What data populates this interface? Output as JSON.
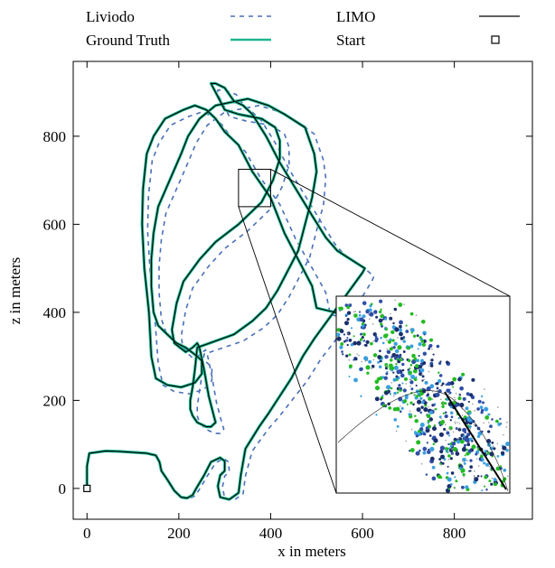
{
  "chart_data": {
    "type": "line",
    "title": "",
    "xlabel": "x in meters",
    "ylabel": "z in meters",
    "xlim": [
      -30,
      970
    ],
    "ylim": [
      -70,
      970
    ],
    "xticks": [
      0,
      200,
      400,
      600,
      800
    ],
    "yticks": [
      0,
      200,
      400,
      600,
      800
    ],
    "grid": false,
    "legend_position": "top, outside plot (two columns)",
    "colors": {
      "liviodo": "#4a6fb8",
      "limo": "#000000",
      "ground_truth": "#1fb58f",
      "start": "#000000"
    },
    "series": [
      {
        "name": "Ground Truth",
        "style": "solid",
        "x": [
          0,
          0,
          5,
          40,
          70,
          100,
          130,
          150,
          158,
          162,
          175,
          190,
          205,
          218,
          230,
          238,
          255,
          270,
          290,
          300,
          300,
          290,
          285,
          290,
          310,
          330,
          335,
          345,
          375,
          395,
          420,
          445,
          470,
          495,
          600,
          605,
          590,
          560,
          545,
          520,
          490,
          455,
          420,
          390,
          360,
          340,
          320,
          300,
          280,
          270,
          275,
          280,
          290,
          300,
          330,
          380,
          410,
          420,
          420,
          405,
          380,
          330,
          280,
          245,
          210,
          195,
          185,
          190,
          215,
          230,
          240,
          245,
          255,
          265,
          275,
          280,
          270,
          260,
          240,
          230,
          225,
          225,
          230,
          235,
          240,
          320,
          360,
          390,
          415,
          440,
          460,
          475,
          490,
          500,
          495,
          485,
          475,
          430,
          395,
          350,
          280,
          245,
          220,
          205,
          180,
          155,
          145,
          140,
          140,
          145,
          155,
          175,
          195,
          215,
          240,
          250,
          250,
          235,
          205,
          175,
          150,
          140,
          135,
          125,
          120,
          122,
          130,
          145,
          170,
          210,
          235,
          260,
          280,
          300,
          330,
          360,
          400,
          430,
          460,
          490,
          500,
          540,
          560,
          580
        ],
        "y": [
          0,
          50,
          80,
          85,
          84,
          82,
          80,
          75,
          60,
          40,
          20,
          -5,
          -20,
          -22,
          -15,
          0,
          30,
          60,
          70,
          62,
          40,
          30,
          5,
          -20,
          -25,
          -10,
          30,
          90,
          140,
          170,
          210,
          250,
          300,
          340,
          490,
          500,
          510,
          530,
          540,
          570,
          620,
          680,
          740,
          800,
          850,
          870,
          880,
          910,
          920,
          920,
          910,
          900,
          880,
          860,
          850,
          840,
          820,
          790,
          750,
          700,
          650,
          600,
          560,
          520,
          470,
          420,
          360,
          330,
          310,
          320,
          330,
          320,
          270,
          210,
          170,
          150,
          140,
          140,
          150,
          165,
          180,
          200,
          230,
          270,
          320,
          350,
          380,
          410,
          450,
          500,
          540,
          600,
          660,
          720,
          760,
          790,
          820,
          850,
          870,
          885,
          870,
          840,
          800,
          760,
          700,
          640,
          580,
          520,
          460,
          400,
          370,
          350,
          330,
          320,
          300,
          290,
          260,
          240,
          230,
          235,
          250,
          300,
          400,
          500,
          600,
          680,
          760,
          800,
          840,
          860,
          870,
          860,
          840,
          810,
          780,
          720,
          660,
          580,
          520,
          460,
          410,
          400,
          390,
          380
        ]
      },
      {
        "name": "LIMO",
        "style": "solid",
        "x": [
          0,
          0,
          5,
          40,
          70,
          100,
          130,
          150,
          158,
          162,
          175,
          190,
          205,
          218,
          230,
          238,
          255,
          270,
          290,
          300,
          300,
          290,
          285,
          290,
          310,
          330,
          335,
          345,
          375,
          395,
          420,
          445,
          470,
          495,
          600,
          605,
          590,
          560,
          545,
          520,
          490,
          455,
          420,
          390,
          360,
          340,
          320,
          300,
          280,
          270,
          275,
          280,
          290,
          300,
          330,
          380,
          410,
          420,
          420,
          405,
          380,
          330,
          280,
          245,
          210,
          195,
          185,
          190,
          215,
          230,
          240,
          245,
          255,
          265,
          275,
          280,
          270,
          260,
          240,
          230,
          225,
          225,
          230,
          235,
          240,
          320,
          360,
          390,
          415,
          440,
          460,
          475,
          490,
          500,
          495,
          485,
          475,
          430,
          395,
          350,
          280,
          245,
          220,
          205,
          180,
          155,
          145,
          140,
          140,
          145,
          155,
          175,
          195,
          215,
          240,
          250,
          250,
          235,
          205,
          175,
          150,
          140,
          135,
          125,
          120,
          122,
          130,
          145,
          170,
          210,
          235,
          260,
          280,
          300,
          330,
          360,
          400,
          430,
          460,
          490,
          500,
          540,
          560,
          580
        ],
        "y": [
          0,
          50,
          80,
          85,
          84,
          82,
          80,
          75,
          60,
          40,
          20,
          -5,
          -20,
          -22,
          -15,
          0,
          30,
          60,
          70,
          62,
          40,
          30,
          5,
          -20,
          -25,
          -10,
          30,
          90,
          140,
          170,
          210,
          250,
          300,
          340,
          490,
          500,
          510,
          530,
          540,
          570,
          620,
          680,
          740,
          800,
          850,
          870,
          880,
          910,
          920,
          920,
          910,
          900,
          880,
          860,
          850,
          840,
          820,
          790,
          750,
          700,
          650,
          600,
          560,
          520,
          470,
          420,
          360,
          330,
          310,
          320,
          330,
          320,
          270,
          210,
          170,
          150,
          140,
          140,
          150,
          165,
          180,
          200,
          230,
          270,
          320,
          350,
          380,
          410,
          450,
          500,
          540,
          600,
          660,
          720,
          760,
          790,
          820,
          850,
          870,
          885,
          870,
          840,
          800,
          760,
          700,
          640,
          580,
          520,
          460,
          400,
          370,
          350,
          330,
          320,
          300,
          290,
          260,
          240,
          230,
          235,
          250,
          300,
          400,
          500,
          600,
          680,
          760,
          800,
          840,
          860,
          870,
          860,
          840,
          810,
          780,
          720,
          660,
          580,
          520,
          460,
          410,
          400,
          390,
          380
        ]
      },
      {
        "name": "Liviodo",
        "style": "dashed",
        "x": [
          0,
          0,
          5,
          40,
          70,
          100,
          130,
          150,
          158,
          162,
          175,
          190,
          205,
          220,
          235,
          245,
          262,
          280,
          298,
          308,
          310,
          300,
          295,
          300,
          320,
          340,
          345,
          360,
          395,
          420,
          450,
          480,
          510,
          540,
          620,
          625,
          610,
          580,
          565,
          540,
          510,
          475,
          440,
          410,
          380,
          360,
          345,
          325,
          300,
          285,
          285,
          290,
          300,
          310,
          345,
          400,
          430,
          440,
          440,
          425,
          400,
          350,
          300,
          265,
          230,
          215,
          205,
          210,
          232,
          248,
          258,
          262,
          272,
          282,
          292,
          298,
          290,
          278,
          258,
          245,
          240,
          240,
          244,
          250,
          255,
          340,
          385,
          415,
          440,
          465,
          485,
          500,
          515,
          520,
          515,
          505,
          495,
          455,
          420,
          375,
          300,
          262,
          238,
          222,
          197,
          172,
          162,
          157,
          157,
          162,
          172,
          192,
          215,
          235,
          262,
          272,
          272,
          255,
          222,
          190,
          165,
          155,
          148,
          138,
          132,
          134,
          142,
          157,
          182,
          222,
          250,
          275,
          295,
          315,
          345,
          378,
          420,
          455,
          488,
          520,
          530,
          570,
          590,
          610
        ],
        "y": [
          0,
          50,
          80,
          85,
          84,
          82,
          80,
          75,
          60,
          40,
          20,
          -5,
          -22,
          -24,
          -17,
          -2,
          28,
          58,
          68,
          60,
          38,
          28,
          3,
          -22,
          -27,
          -12,
          28,
          85,
          135,
          165,
          205,
          245,
          295,
          335,
          470,
          482,
          495,
          515,
          525,
          555,
          605,
          665,
          725,
          785,
          835,
          855,
          865,
          895,
          905,
          905,
          895,
          885,
          865,
          845,
          835,
          825,
          805,
          775,
          735,
          685,
          635,
          585,
          545,
          505,
          455,
          405,
          345,
          315,
          295,
          305,
          315,
          305,
          255,
          195,
          155,
          135,
          125,
          125,
          135,
          150,
          165,
          185,
          215,
          255,
          305,
          335,
          365,
          395,
          435,
          485,
          525,
          585,
          645,
          705,
          745,
          775,
          805,
          835,
          855,
          870,
          855,
          825,
          785,
          745,
          685,
          625,
          565,
          505,
          445,
          385,
          355,
          335,
          315,
          305,
          285,
          275,
          245,
          225,
          215,
          220,
          235,
          285,
          385,
          485,
          585,
          665,
          745,
          785,
          825,
          845,
          855,
          845,
          825,
          795,
          765,
          705,
          645,
          565,
          505,
          445,
          395,
          385,
          375,
          365
        ]
      }
    ],
    "start_marker": {
      "name": "Start",
      "x": 0,
      "y": 0,
      "symbol": "open square"
    },
    "inset": {
      "description_visible": false,
      "region_x": [
        330,
        400
      ],
      "region_y": [
        640,
        725
      ],
      "black_path_segment": "LIMO trajectory shown over point cloud",
      "point_colors": [
        "#2f4fa8",
        "#3aa0e0",
        "#22bb22",
        "#999999",
        "#1a2f6b"
      ]
    },
    "legend": [
      {
        "label": "Liviodo",
        "style": "dashed",
        "color": "#4a6fb8"
      },
      {
        "label": "LIMO",
        "style": "solid",
        "color": "#000000"
      },
      {
        "label": "Ground Truth",
        "style": "solid",
        "color": "#1fb58f"
      },
      {
        "label": "Start",
        "style": "square",
        "color": "#000000"
      }
    ]
  }
}
